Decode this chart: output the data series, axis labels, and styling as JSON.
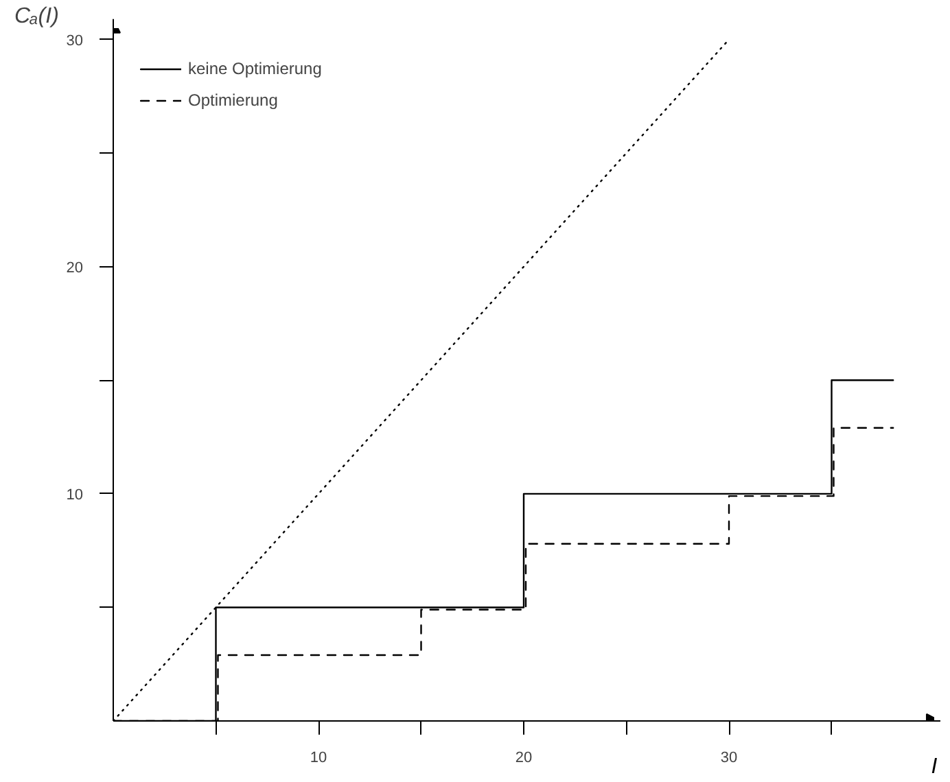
{
  "chart_data": {
    "type": "step",
    "xlabel": "I",
    "ylabel": "Cₐ(I)",
    "xlim": [
      0,
      40
    ],
    "ylim": [
      0,
      30.5
    ],
    "xticks": [
      {
        "value": 5,
        "label": null
      },
      10,
      {
        "value": 15,
        "label": null
      },
      20,
      {
        "value": 25,
        "label": null
      },
      30,
      {
        "value": 35,
        "label": null
      }
    ],
    "yticks": [
      {
        "value": 5,
        "label": null
      },
      10,
      {
        "value": 15,
        "label": null
      },
      20,
      {
        "value": 25,
        "label": null
      },
      30
    ],
    "grid": false,
    "legend": "top left",
    "series": [
      {
        "name": "keine Optimierung",
        "color": "#000000",
        "line_style": "solid",
        "x": [
          0,
          5,
          20,
          35,
          38
        ],
        "values": [
          0,
          5,
          10,
          15,
          15
        ]
      },
      {
        "name": "Optimierung",
        "color": "#000000",
        "line_style": "dashed",
        "x": [
          0,
          5.1,
          15,
          20.1,
          30,
          35.1,
          38
        ],
        "values": [
          0,
          2.9,
          4.9,
          7.8,
          9.9,
          12.9,
          12.9
        ]
      },
      {
        "color": "#000000",
        "type": "line",
        "line_style": "dotted",
        "x": [
          0,
          30
        ],
        "values": [
          0,
          30
        ]
      }
    ]
  }
}
